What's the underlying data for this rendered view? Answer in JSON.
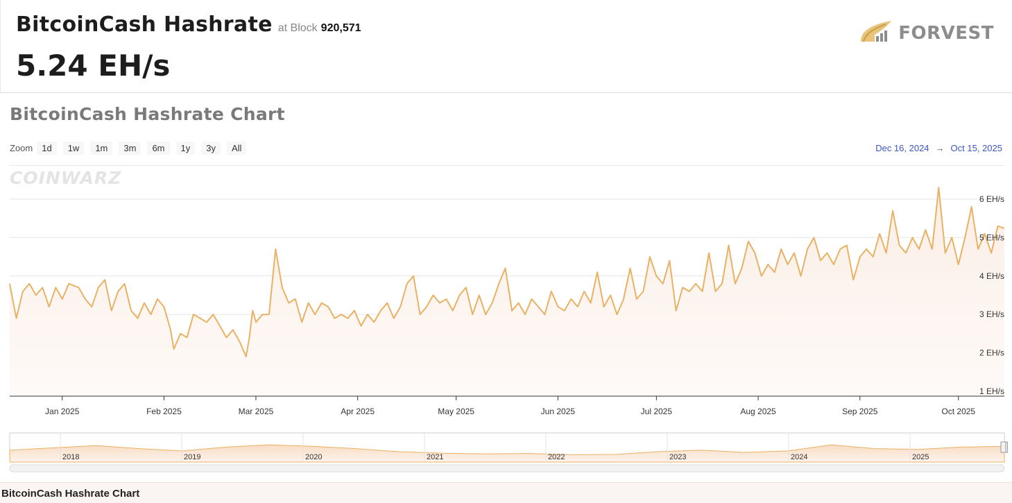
{
  "header": {
    "title": "BitcoinCash Hashrate",
    "at_block_label": "at Block",
    "block_number": "920,571",
    "current_hashrate": "5.24 EH/s",
    "brand_name": "FORVEST"
  },
  "chart_section": {
    "title": "BitcoinCash Hashrate Chart",
    "zoom_label": "Zoom",
    "zoom_options": [
      "1d",
      "1w",
      "1m",
      "3m",
      "6m",
      "1y",
      "3y",
      "All"
    ],
    "range_from": "Dec 16, 2024",
    "range_to": "Oct 15, 2025",
    "range_arrow": "→",
    "watermark": "COINWARZ"
  },
  "footer": {
    "caption": "BitcoinCash Hashrate Chart"
  },
  "colors": {
    "line": "#e8b163",
    "area_top": "#fbeee5",
    "area_bottom": "#fefaf8",
    "navigator_mask": "#bfc3ee",
    "range_text": "#3a56c5"
  },
  "chart_data": {
    "type": "area",
    "unit": "EH/s",
    "y_ticks": [
      1,
      2,
      3,
      4,
      5,
      6
    ],
    "y_tick_labels": [
      "1 EH/s",
      "2 EH/s",
      "3 EH/s",
      "4 EH/s",
      "5 EH/s",
      "6 EH/s"
    ],
    "ylim": [
      1,
      6.5
    ],
    "x_start": "2024-12-16",
    "x_end": "2025-10-15",
    "x_ticks": [
      {
        "date": "2025-01-01",
        "label": "Jan 2025"
      },
      {
        "date": "2025-02-01",
        "label": "Feb 2025"
      },
      {
        "date": "2025-03-01",
        "label": "Mar 2025"
      },
      {
        "date": "2025-04-01",
        "label": "Apr 2025"
      },
      {
        "date": "2025-05-01",
        "label": "May 2025"
      },
      {
        "date": "2025-06-01",
        "label": "Jun 2025"
      },
      {
        "date": "2025-07-01",
        "label": "Jul 2025"
      },
      {
        "date": "2025-08-01",
        "label": "Aug 2025"
      },
      {
        "date": "2025-09-01",
        "label": "Sep 2025"
      },
      {
        "date": "2025-10-01",
        "label": "Oct 2025"
      }
    ],
    "series": [
      {
        "points": [
          [
            "2024-12-16",
            3.8
          ],
          [
            "2024-12-18",
            2.9
          ],
          [
            "2024-12-20",
            3.6
          ],
          [
            "2024-12-22",
            3.8
          ],
          [
            "2024-12-24",
            3.5
          ],
          [
            "2024-12-26",
            3.7
          ],
          [
            "2024-12-28",
            3.2
          ],
          [
            "2024-12-30",
            3.7
          ],
          [
            "2025-01-01",
            3.4
          ],
          [
            "2025-01-03",
            3.8
          ],
          [
            "2025-01-06",
            3.7
          ],
          [
            "2025-01-08",
            3.4
          ],
          [
            "2025-01-10",
            3.2
          ],
          [
            "2025-01-12",
            3.7
          ],
          [
            "2025-01-14",
            3.9
          ],
          [
            "2025-01-16",
            3.1
          ],
          [
            "2025-01-18",
            3.6
          ],
          [
            "2025-01-20",
            3.8
          ],
          [
            "2025-01-22",
            3.1
          ],
          [
            "2025-01-24",
            2.9
          ],
          [
            "2025-01-26",
            3.3
          ],
          [
            "2025-01-28",
            3.0
          ],
          [
            "2025-01-30",
            3.4
          ],
          [
            "2025-02-01",
            3.2
          ],
          [
            "2025-02-03",
            2.6
          ],
          [
            "2025-02-04",
            2.1
          ],
          [
            "2025-02-06",
            2.5
          ],
          [
            "2025-02-08",
            2.4
          ],
          [
            "2025-02-10",
            3.0
          ],
          [
            "2025-02-12",
            2.9
          ],
          [
            "2025-02-14",
            2.8
          ],
          [
            "2025-02-16",
            3.0
          ],
          [
            "2025-02-18",
            2.7
          ],
          [
            "2025-02-20",
            2.4
          ],
          [
            "2025-02-22",
            2.6
          ],
          [
            "2025-02-24",
            2.3
          ],
          [
            "2025-02-26",
            1.9
          ],
          [
            "2025-02-27",
            2.4
          ],
          [
            "2025-02-28",
            3.1
          ],
          [
            "2025-03-01",
            2.8
          ],
          [
            "2025-03-03",
            3.0
          ],
          [
            "2025-03-05",
            3.0
          ],
          [
            "2025-03-07",
            4.7
          ],
          [
            "2025-03-09",
            3.7
          ],
          [
            "2025-03-11",
            3.3
          ],
          [
            "2025-03-13",
            3.4
          ],
          [
            "2025-03-15",
            2.8
          ],
          [
            "2025-03-17",
            3.3
          ],
          [
            "2025-03-19",
            3.0
          ],
          [
            "2025-03-21",
            3.3
          ],
          [
            "2025-03-23",
            3.2
          ],
          [
            "2025-03-25",
            2.9
          ],
          [
            "2025-03-27",
            3.0
          ],
          [
            "2025-03-29",
            2.9
          ],
          [
            "2025-03-31",
            3.1
          ],
          [
            "2025-04-02",
            2.7
          ],
          [
            "2025-04-04",
            3.0
          ],
          [
            "2025-04-06",
            2.8
          ],
          [
            "2025-04-08",
            3.1
          ],
          [
            "2025-04-10",
            3.3
          ],
          [
            "2025-04-12",
            2.9
          ],
          [
            "2025-04-14",
            3.2
          ],
          [
            "2025-04-16",
            3.8
          ],
          [
            "2025-04-18",
            4.0
          ],
          [
            "2025-04-20",
            3.0
          ],
          [
            "2025-04-22",
            3.2
          ],
          [
            "2025-04-24",
            3.5
          ],
          [
            "2025-04-26",
            3.3
          ],
          [
            "2025-04-28",
            3.4
          ],
          [
            "2025-04-30",
            3.1
          ],
          [
            "2025-05-02",
            3.5
          ],
          [
            "2025-05-04",
            3.7
          ],
          [
            "2025-05-06",
            3.0
          ],
          [
            "2025-05-08",
            3.5
          ],
          [
            "2025-05-10",
            3.0
          ],
          [
            "2025-05-12",
            3.3
          ],
          [
            "2025-05-14",
            3.8
          ],
          [
            "2025-05-16",
            4.2
          ],
          [
            "2025-05-18",
            3.1
          ],
          [
            "2025-05-20",
            3.3
          ],
          [
            "2025-05-22",
            3.0
          ],
          [
            "2025-05-24",
            3.4
          ],
          [
            "2025-05-26",
            3.2
          ],
          [
            "2025-05-28",
            3.0
          ],
          [
            "2025-05-30",
            3.6
          ],
          [
            "2025-06-01",
            3.2
          ],
          [
            "2025-06-03",
            3.1
          ],
          [
            "2025-06-05",
            3.4
          ],
          [
            "2025-06-07",
            3.2
          ],
          [
            "2025-06-09",
            3.6
          ],
          [
            "2025-06-11",
            3.3
          ],
          [
            "2025-06-13",
            4.1
          ],
          [
            "2025-06-15",
            3.2
          ],
          [
            "2025-06-17",
            3.5
          ],
          [
            "2025-06-19",
            3.0
          ],
          [
            "2025-06-21",
            3.4
          ],
          [
            "2025-06-23",
            4.2
          ],
          [
            "2025-06-25",
            3.4
          ],
          [
            "2025-06-27",
            3.6
          ],
          [
            "2025-06-29",
            4.5
          ],
          [
            "2025-07-01",
            4.0
          ],
          [
            "2025-07-03",
            3.8
          ],
          [
            "2025-07-05",
            4.4
          ],
          [
            "2025-07-07",
            3.1
          ],
          [
            "2025-07-09",
            3.7
          ],
          [
            "2025-07-11",
            3.6
          ],
          [
            "2025-07-13",
            3.8
          ],
          [
            "2025-07-15",
            3.6
          ],
          [
            "2025-07-17",
            4.6
          ],
          [
            "2025-07-19",
            3.6
          ],
          [
            "2025-07-21",
            3.8
          ],
          [
            "2025-07-23",
            4.8
          ],
          [
            "2025-07-25",
            3.8
          ],
          [
            "2025-07-27",
            4.2
          ],
          [
            "2025-07-29",
            4.9
          ],
          [
            "2025-07-31",
            4.6
          ],
          [
            "2025-08-02",
            4.0
          ],
          [
            "2025-08-04",
            4.3
          ],
          [
            "2025-08-06",
            4.1
          ],
          [
            "2025-08-08",
            4.7
          ],
          [
            "2025-08-10",
            4.3
          ],
          [
            "2025-08-12",
            4.6
          ],
          [
            "2025-08-14",
            4.0
          ],
          [
            "2025-08-16",
            4.7
          ],
          [
            "2025-08-18",
            5.0
          ],
          [
            "2025-08-20",
            4.4
          ],
          [
            "2025-08-22",
            4.6
          ],
          [
            "2025-08-24",
            4.3
          ],
          [
            "2025-08-26",
            4.7
          ],
          [
            "2025-08-28",
            4.8
          ],
          [
            "2025-08-30",
            3.9
          ],
          [
            "2025-09-01",
            4.5
          ],
          [
            "2025-09-03",
            4.7
          ],
          [
            "2025-09-05",
            4.5
          ],
          [
            "2025-09-07",
            5.1
          ],
          [
            "2025-09-09",
            4.6
          ],
          [
            "2025-09-11",
            5.7
          ],
          [
            "2025-09-13",
            4.8
          ],
          [
            "2025-09-15",
            4.6
          ],
          [
            "2025-09-17",
            5.0
          ],
          [
            "2025-09-19",
            4.7
          ],
          [
            "2025-09-21",
            5.2
          ],
          [
            "2025-09-23",
            4.7
          ],
          [
            "2025-09-25",
            6.3
          ],
          [
            "2025-09-27",
            4.6
          ],
          [
            "2025-09-29",
            5.0
          ],
          [
            "2025-10-01",
            4.3
          ],
          [
            "2025-10-03",
            5.0
          ],
          [
            "2025-10-05",
            5.8
          ],
          [
            "2025-10-07",
            4.7
          ],
          [
            "2025-10-09",
            5.1
          ],
          [
            "2025-10-11",
            4.6
          ],
          [
            "2025-10-13",
            5.3
          ],
          [
            "2025-10-15",
            5.24
          ]
        ]
      }
    ],
    "navigator": {
      "year_labels": [
        "2018",
        "2019",
        "2020",
        "2021",
        "2022",
        "2023",
        "2024",
        "2025"
      ],
      "profile": [
        0.6,
        0.75,
        0.9,
        0.7,
        0.55,
        0.8,
        0.95,
        0.85,
        0.7,
        0.5,
        0.4,
        0.35,
        0.38,
        0.3,
        0.32,
        0.5,
        0.6,
        0.45,
        0.55,
        0.95,
        0.7,
        0.65,
        0.8,
        0.85
      ],
      "selected_from": 0.9,
      "selected_to": 1.0
    }
  }
}
